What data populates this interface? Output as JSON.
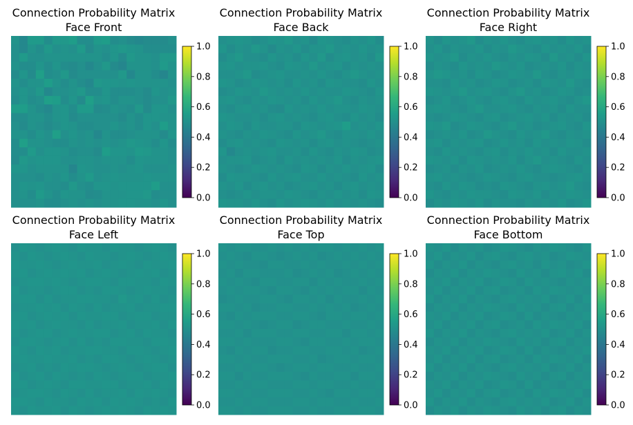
{
  "chart_data": {
    "type": "heatmap",
    "colormap": "viridis",
    "clim": [
      0.0,
      1.0
    ],
    "colorbar_ticks": [
      "0.0",
      "0.2",
      "0.4",
      "0.6",
      "0.8",
      "1.0"
    ],
    "panels": [
      {
        "title": "Connection Probability Matrix",
        "subtitle": "Face Front",
        "rows": [
          "51 47 54 54 49 53 53 55 49 49 54 55 49 50 48 47 48 48 48 50",
          "50 47 51 49 53 50 51 50 54 48 51 50 52 53 52 51 49 49 49 49",
          "50 54 50 50 51 51 51 51 51 51 51 49 52 48 53 51 51 50 53 53",
          "51 49 49 52 49 52 49 48 50 47 50 53 48 46 51 51 51 50 54 51",
          "48 52 48 56 49 50 53 48 50 50 50 50 50 53 47 51 51 49 46 51",
          "51 49 51 51 55 51 49 51 49 47 53 52 52 51 52 51 51 51 51 50",
          "50 52 50 53 47 50 50 51 53 49 49 52 49 49 49 50 48 52 50 51",
          "49 52 49 50 56 55 49 52 48 56 51 52 49 51 51 50 48 50 50 53",
          "55 55 51 49 47 51 52 49 54 54 48 49 51 50 49 53 48 52 52 50",
          "49 49 51 51 49 51 52 48 50 50 50 50 50 48 51 49 52 52 51 51",
          "50 48 51 50 48 50 52 51 49 49 50 50 52 50 51 49 52 50 55 51",
          "51 51 49 52 50 56 50 52 50 51 47 51 49 49 50 51 51 51 48 52",
          "49 56 51 51 50 49 49 51 50 51 50 51 50 51 53 52 51 49 52 49",
          "49 49 54 50 52 52 51 49 50 50 48 55 52 52 51 54 53 51 51 50",
          "48 53 51 52 52 52 50 50 51 51 50 51 51 51 49 52 51 51 51 50",
          "52 52 50 51 51 51 51 46 52 51 50 50 51 50 51 52 50 50 50 51",
          "50 50 50 49 51 50 52 49 51 54 50 51 52 51 51 51 52 51 51 51",
          "50 52 51 52 50 50 49 53 50 49 52 52 51 52 52 52 52 55 50 50",
          "50 51 49 54 51 49 52 51 51 48 49 51 51 51 52 52 53 49 50 50",
          "50 50 50 51 49 49 50 51 50 51 50 51 51 52 52 51 51 50 52 50"
        ]
      },
      {
        "title": "Connection Probability Matrix",
        "subtitle": "Face Back",
        "rows": [
          "50 51 52 51 49 50 52 51 53 50 51 48 52 51 50 49 51 50 52 49",
          "52 49 51 50 53 51 48 51 50 52 49 51 51 53 50 51 50 52 50 51",
          "49 51 53 50 50 49 52 50 51 49 52 50 53 49 51 52 50 51 49 53",
          "51 52 50 51 51 52 50 49 52 51 50 53 50 51 52 49 51 50 51 50",
          "50 50 51 53 49 50 51 52 50 50 51 50 52 50 49 51 53 51 50 51",
          "52 51 49 50 52 51 50 51 49 52 50 51 49 52 51 50 50 49 52 50",
          "49 50 52 51 50 53 51 50 51 50 52 50 51 50 50 52 51 50 49 52",
          "51 52 50 49 51 50 52 51 50 51 49 52 50 51 53 50 49 51 50 51",
          "50 49 51 52 50 51 49 48 52 50 51 50 52 50 51 51 50 52 51 50",
          "52 51 50 50 51 49 51 52 50 51 50 49 51 52 50 49 52 50 51 49",
          "50 52 51 49 52 50 50 51 51 49 52 51 50 51 52 55 50 51 50 52",
          "51 50 49 51 50 52 51 50 49 52 50 51 53 50 49 51 51 50 52 50",
          "49 51 52 50 51 50 49 52 51 50 51 49 51 52 50 51 50 49 50 51",
          "52 47 50 51 50 51 52 50 50 51 49 52 50 49 51 50 52 51 49 50",
          "50 51 51 52 49 50 51 49 52 50 51 50 51 50 52 49 51 50 51 52",
          "51 50 49 50 52 51 50 51 50 49 52 51 49 51 50 52 50 51 52 49",
          "49 52 51 51 50 49 52 50 51 52 50 50 52 50 51 50 49 52 50 51",
          "51 50 52 49 51 52 50 51 49 50 51 52 50 51 49 51 52 50 51 50",
          "50 49 50 52 50 51 51 50 52 51 50 49 51 50 52 50 51 49 52 51",
          "52 51 51 50 52 50 49 52 50 51 52 51 50 52 50 51 50 51 50 49"
        ]
      },
      {
        "title": "Connection Probability Matrix",
        "subtitle": "Face Right",
        "rows": [
          "51 49 52 50 51 53 49 51 50 52 50 49 51 52 50 51 49 52 50 51",
          "50 52 49 51 50 50 52 49 51 50 53 51 50 49 52 50 51 50 52 49",
          "52 50 51 53 49 51 50 52 50 49 51 50 52 51 49 53 50 51 49 52",
          "49 51 50 49 52 50 51 50 53 51 50 52 49 50 51 50 52 49 51 50",
          "51 53 52 50 51 49 52 51 49 50 52 51 50 53 50 49 51 50 52 51",
          "50 50 49 52 50 51 49 50 52 51 49 50 51 49 52 51 50 53 50 49",
          "52 51 50 51 53 50 51 52 50 49 51 53 50 51 49 50 52 51 49 50",
          "49 50 52 49 50 52 50 49 51 52 50 49 52 50 51 52 50 49 51 53",
          "51 52 51 50 49 51 53 50 50 51 52 50 49 51 50 51 49 52 50 50",
          "50 49 50 52 51 50 49 51 52 49 50 51 52 50 52 49 51 50 51 49",
          "52 51 53 49 50 52 51 50 49 51 53 50 51 49 50 51 52 50 49 52",
          "49 50 51 50 52 49 50 53 51 50 49 52 50 51 53 50 49 51 50 51",
          "51 52 49 51 50 51 52 49 50 52 50 51 49 52 50 51 50 52 51 49",
          "50 49 52 50 51 50 49 51 52 49 51 50 52 50 51 49 52 50 50 51",
          "52 51 50 52 49 52 51 50 51 50 52 49 51 53 50 51 50 49 52 50",
          "49 50 51 49 51 50 52 49 50 51 50 52 50 49 51 52 51 50 49 51",
          "51 52 50 51 50 49 50 52 51 50 49 51 52 50 50 49 50 51 52 50",
          "50 49 52 50 52 51 49 50 49 52 51 50 49 51 52 50 51 53 50 49",
          "52 50 49 51 50 52 51 51 50 49 52 51 50 52 49 51 50 52 51 50",
          "49 51 50 52 51 50 52 49 51 50 50 49 51 50 51 50 52 49 50 52"
        ]
      },
      {
        "title": "Connection Probability Matrix",
        "subtitle": "Face Left",
        "rows": [
          "50 52 51 50 51 52 51 50 52 51 51 50 52 51 51 50 51 52 51 50",
          "51 50 52 51 50 51 52 51 50 52 51 51 50 51 52 51 50 51 52 51",
          "52 51 51 52 51 50 51 52 51 51 52 50 51 52 51 50 52 51 51 52",
          "51 52 50 51 52 51 52 51 52 50 51 52 51 50 51 52 51 52 50 51",
          "50 51 52 52 51 52 51 50 51 52 52 51 50 52 52 51 51 50 52 51",
          "52 50 51 51 50 51 52 52 50 51 50 52 52 51 50 51 52 51 51 50",
          "51 52 52 50 52 50 51 51 52 52 51 51 50 53 51 52 50 52 50 51",
          "50 51 51 52 51 52 50 52 51 50 52 50 51 51 52 50 51 51 52 52",
          "51 52 50 51 52 51 52 50 52 51 51 52 52 50 51 52 52 50 51 51",
          "52 51 52 50 51 52 51 51 50 52 50 51 51 52 50 51 51 52 50 52",
          "51 50 51 52 52 50 51 52 51 51 52 52 50 51 52 50 52 51 51 50",
          "50 52 52 51 50 51 52 50 52 50 51 50 52 52 51 51 50 52 52 51",
          "52 51 50 52 51 52 50 51 51 52 52 51 51 50 52 52 51 50 51 52",
          "51 52 51 51 52 51 51 52 50 51 50 52 52 51 50 51 52 51 50 51",
          "50 51 52 50 51 50 52 51 52 52 51 50 51 52 51 50 51 52 52 50",
          "52 50 51 52 50 52 51 50 51 50 52 51 50 51 52 52 50 51 51 52",
          "51 52 50 51 52 51 50 52 52 51 51 52 52 50 51 51 52 50 52 51",
          "50 51 52 52 51 50 52 51 50 52 50 51 51 52 50 52 51 52 51 50",
          "52 52 51 50 52 51 51 50 52 51 52 50 52 51 52 51 50 51 50 52",
          "51 50 52 51 51 52 50 52 51 50 51 52 51 52 51 50 52 51 52 51"
        ]
      },
      {
        "title": "Connection Probability Matrix",
        "subtitle": "Face Top",
        "rows": [
          "51 50 51 51 50 50 51 50 51 50 51 50 51 51 50 51 50 51 50 51",
          "50 51 50 49 51 51 50 49 50 51 50 51 49 50 51 50 51 50 51 50",
          "51 50 51 50 50 49 51 51 50 50 51 50 51 50 50 51 50 51 50 51",
          "50 51 49 51 51 50 50 50 51 49 50 51 50 51 49 50 51 50 51 50",
          "51 50 51 50 49 51 51 50 50 51 51 49 51 50 51 50 50 51 50 51",
          "50 51 50 51 51 50 49 51 51 50 49 51 50 51 50 51 51 49 51 50",
          "49 50 51 50 50 51 51 50 49 51 51 50 51 49 51 50 50 51 50 51",
          "51 51 50 51 49 50 50 51 51 50 50 51 50 51 50 51 49 50 51 50",
          "50 49 51 50 51 51 51 50 50 51 51 50 49 51 51 50 51 51 50 51",
          "51 51 50 51 50 49 50 51 51 49 50 51 51 50 50 51 50 50 51 50",
          "50 50 51 49 51 51 51 50 50 51 51 50 50 51 51 49 51 51 50 51",
          "51 51 50 51 50 50 50 51 51 50 49 51 51 50 50 51 50 51 51 50",
          "50 49 51 50 51 51 49 50 50 51 51 50 50 51 51 50 51 49 50 51",
          "51 51 50 51 50 50 51 51 51 50 50 51 49 50 51 51 50 51 51 50",
          "50 50 51 50 51 51 50 49 50 51 51 50 51 51 50 50 51 50 50 51",
          "51 51 49 51 50 50 51 51 51 50 49 51 50 50 51 51 49 51 51 50",
          "50 50 51 50 51 51 50 50 50 51 51 50 51 51 50 50 51 50 50 51",
          "51 51 50 51 50 50 51 51 51 50 50 51 50 49 51 51 50 51 51 50",
          "50 50 51 50 51 51 50 50 50 51 51 50 51 51 50 50 51 50 50 51",
          "51 51 50 51 50 50 51 51 51 50 50 51 50 50 51 51 50 51 51 50"
        ]
      },
      {
        "title": "Connection Probability Matrix",
        "subtitle": "Face Bottom",
        "rows": [
          "51 50 52 49 51 50 51 49 50 52 51 50 49 51 50 52 51 50 49 51",
          "50 52 49 51 50 52 49 51 52 50 49 51 52 50 51 49 50 52 51 50",
          "52 49 51 50 52 49 51 50 49 51 52 50 51 49 52 50 51 49 50 52",
          "49 51 50 52 49 51 50 52 51 50 49 52 50 51 49 51 52 50 52 49",
          "51 50 52 49 51 50 52 49 50 52 51 49 52 50 51 50 49 51 50 51",
          "50 52 49 51 50 52 49 51 52 49 50 51 49 52 50 52 51 50 51 50",
          "52 49 51 50 52 49 51 50 49 51 52 50 51 50 52 49 50 52 49 52",
          "49 51 50 52 49 51 50 52 51 50 49 52 50 51 49 51 52 49 51 50",
          "51 50 52 49 51 50 52 49 50 52 51 49 52 49 51 50 49 51 50 52",
          "50 52 49 51 50 52 49 51 52 49 50 51 49 52 50 52 51 50 52 49",
          "52 49 51 50 52 49 51 50 49 51 52 50 51 50 52 49 50 52 49 51",
          "49 51 50 52 49 51 50 52 51 50 49 52 50 51 49 51 52 49 51 50",
          "51 50 52 49 51 50 52 49 50 52 51 49 52 49 51 50 49 51 50 52",
          "50 52 49 51 50 52 49 51 52 49 50 51 49 52 50 52 51 50 52 49",
          "52 49 51 50 52 49 51 50 49 51 52 50 51 50 52 49 50 52 49 51",
          "49 51 50 52 49 51 50 52 51 50 49 52 50 51 49 51 52 49 51 50",
          "51 50 52 49 51 50 52 49 50 52 51 49 52 49 51 50 49 51 50 52",
          "50 52 49 51 50 52 49 51 52 49 50 51 49 52 50 52 51 50 52 49",
          "52 49 51 50 52 49 51 50 49 51 52 50 51 50 52 49 50 52 49 51",
          "49 51 50 52 49 51 50 52 51 50 49 52 50 51 49 51 52 49 51 50"
        ]
      }
    ]
  }
}
